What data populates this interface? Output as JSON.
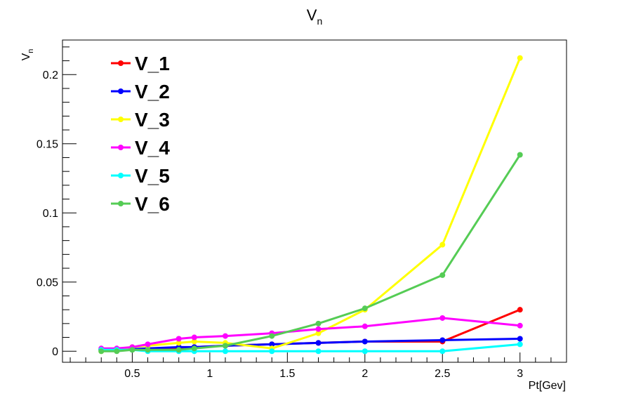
{
  "chart_data": {
    "type": "line",
    "title": "V_n",
    "title_main": "V",
    "title_sub": "n",
    "xlabel": "Pt[Gev]",
    "ylabel_main": "V",
    "ylabel_sub": "n",
    "xlim": [
      0.05,
      3.3
    ],
    "ylim": [
      -0.008,
      0.225
    ],
    "x_ticks": [
      "0.5",
      "1",
      "1.5",
      "2",
      "2.5",
      "3"
    ],
    "y_ticks": [
      "0",
      "0.05",
      "0.1",
      "0.15",
      "0.2"
    ],
    "legend_position": "top-left",
    "grid": false,
    "x": [
      0.3,
      0.4,
      0.5,
      0.6,
      0.8,
      0.9,
      1.1,
      1.4,
      1.7,
      2.0,
      2.5,
      3.0
    ],
    "series": [
      {
        "name": "V_1",
        "color": "#ff0000",
        "values": [
          0.001,
          0.001,
          0.001,
          0.0015,
          0.002,
          0.003,
          0.004,
          0.005,
          0.006,
          0.007,
          0.007,
          0.03
        ]
      },
      {
        "name": "V_2",
        "color": "#0000ff",
        "values": [
          0.001,
          0.001,
          0.0015,
          0.002,
          0.003,
          0.003,
          0.004,
          0.005,
          0.006,
          0.007,
          0.008,
          0.009
        ]
      },
      {
        "name": "V_3",
        "color": "#ffff00",
        "values": [
          0.0,
          0.001,
          0.003,
          0.004,
          0.006,
          0.007,
          0.006,
          0.002,
          0.013,
          0.03,
          0.077,
          0.212
        ]
      },
      {
        "name": "V_4",
        "color": "#ff00ff",
        "values": [
          0.002,
          0.002,
          0.003,
          0.005,
          0.009,
          0.01,
          0.011,
          0.013,
          0.016,
          0.018,
          0.024,
          0.0185
        ]
      },
      {
        "name": "V_5",
        "color": "#00ffff",
        "values": [
          0.001,
          0.001,
          0.001,
          0.0,
          0.0,
          0.0,
          0.0,
          0.0,
          0.0,
          0.0,
          0.0,
          0.005
        ]
      },
      {
        "name": "V_6",
        "color": "#55cc55",
        "values": [
          0.0,
          0.0,
          0.001,
          0.001,
          0.001,
          0.002,
          0.004,
          0.011,
          0.02,
          0.031,
          0.055,
          0.142
        ]
      }
    ]
  }
}
